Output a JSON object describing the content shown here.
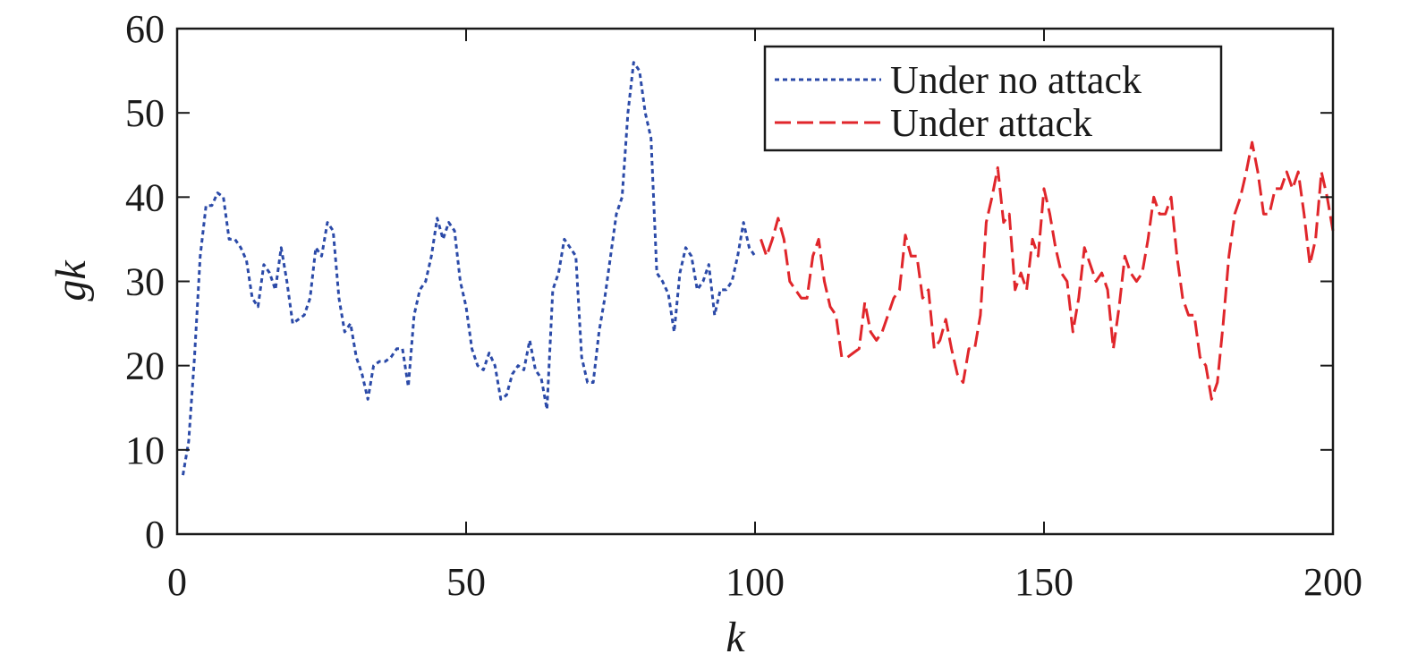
{
  "chart_data": {
    "type": "line",
    "xlabel": "k",
    "ylabel": "gk",
    "xlim": [
      0,
      200
    ],
    "ylim": [
      0,
      60
    ],
    "xticks": [
      "0",
      "50",
      "100",
      "150",
      "200"
    ],
    "yticks": [
      "0",
      "10",
      "20",
      "30",
      "40",
      "50",
      "60"
    ],
    "legend_position": "top-right",
    "grid": false,
    "series": [
      {
        "name": "Under no attack",
        "color": "#2b4aa8",
        "style": "dotted",
        "x": [
          1,
          2,
          3,
          4,
          5,
          6,
          7,
          8,
          9,
          10,
          11,
          12,
          13,
          14,
          15,
          16,
          17,
          18,
          19,
          20,
          21,
          22,
          23,
          24,
          25,
          26,
          27,
          28,
          29,
          30,
          31,
          32,
          33,
          34,
          35,
          36,
          37,
          38,
          39,
          40,
          41,
          42,
          43,
          44,
          45,
          46,
          47,
          48,
          49,
          50,
          51,
          52,
          53,
          54,
          55,
          56,
          57,
          58,
          59,
          60,
          61,
          62,
          63,
          64,
          65,
          66,
          67,
          68,
          69,
          70,
          71,
          72,
          73,
          74,
          75,
          76,
          77,
          78,
          79,
          80,
          81,
          82,
          83,
          84,
          85,
          86,
          87,
          88,
          89,
          90,
          91,
          92,
          93,
          94,
          95,
          96,
          97,
          98,
          99,
          100
        ],
        "y": [
          7,
          11,
          21,
          33,
          39,
          39,
          40.5,
          40,
          35,
          35,
          34,
          32.5,
          28,
          27,
          32,
          31,
          29,
          34,
          30,
          25,
          25.5,
          26,
          28,
          34,
          33,
          37,
          36,
          28,
          24,
          25,
          21,
          19,
          16,
          20,
          20.5,
          20.5,
          21,
          22,
          22,
          17.5,
          26,
          29,
          30,
          33,
          37.5,
          35,
          37,
          36,
          30,
          27,
          22,
          20,
          19.5,
          21.5,
          20,
          16,
          16.5,
          19,
          20,
          19.5,
          23,
          19.5,
          18.5,
          14.8,
          29,
          31,
          35,
          34,
          33,
          21,
          18,
          18,
          24,
          28,
          33,
          38,
          40,
          50,
          56,
          55,
          50,
          47,
          31,
          30,
          28.5,
          24,
          31,
          34,
          33,
          29,
          30,
          32,
          26,
          29,
          29,
          30,
          33,
          37,
          34,
          33
        ]
      },
      {
        "name": "Under attack",
        "color": "#e0262b",
        "style": "dashed",
        "x": [
          101,
          102,
          103,
          104,
          105,
          106,
          107,
          108,
          109,
          110,
          111,
          112,
          113,
          114,
          115,
          116,
          117,
          118,
          119,
          120,
          121,
          122,
          123,
          124,
          125,
          126,
          127,
          128,
          129,
          130,
          131,
          132,
          133,
          134,
          135,
          136,
          137,
          138,
          139,
          140,
          141,
          142,
          143,
          144,
          145,
          146,
          147,
          148,
          149,
          150,
          151,
          152,
          153,
          154,
          155,
          156,
          157,
          158,
          159,
          160,
          161,
          162,
          163,
          164,
          165,
          166,
          167,
          168,
          169,
          170,
          171,
          172,
          173,
          174,
          175,
          176,
          177,
          178,
          179,
          180,
          181,
          182,
          183,
          184,
          185,
          186,
          187,
          188,
          189,
          190,
          191,
          192,
          193,
          194,
          195,
          196,
          197,
          198,
          199,
          200
        ],
        "y": [
          35,
          33,
          35,
          37.5,
          35,
          30,
          29,
          28,
          28,
          33,
          35,
          30,
          27,
          26,
          21,
          21,
          21.5,
          22,
          27.5,
          24,
          23,
          24,
          26,
          28,
          29,
          35.5,
          33,
          33,
          28,
          29,
          22,
          23,
          25.5,
          22,
          19,
          18,
          22,
          22,
          26,
          37,
          40,
          43.5,
          37,
          38,
          29,
          31,
          29,
          35,
          33,
          41,
          38,
          34,
          31,
          30,
          24,
          28,
          34,
          32,
          30,
          31,
          29,
          22,
          27,
          33,
          31,
          30,
          31,
          35,
          40,
          38,
          38,
          40,
          33,
          28,
          26,
          26,
          21,
          20,
          16,
          18,
          25,
          33,
          38,
          40,
          43,
          46.5,
          43,
          38,
          38,
          41,
          41,
          43,
          41,
          43,
          38,
          32,
          35,
          43,
          40,
          36
        ]
      }
    ]
  }
}
